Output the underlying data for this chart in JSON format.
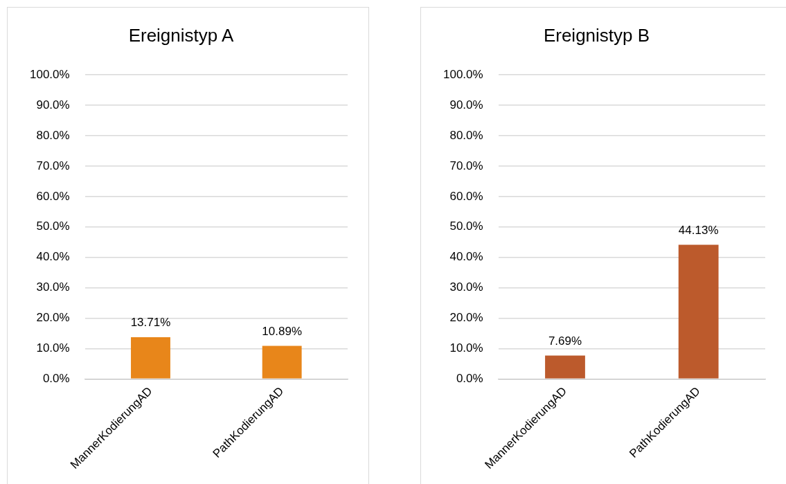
{
  "chart_data": [
    {
      "type": "bar",
      "title": "Ereignistyp A",
      "categories": [
        "MannerKodierungAD",
        "PathKodierungAD"
      ],
      "values": [
        13.71,
        10.89
      ],
      "color": "#e8861a",
      "value_labels": [
        "13.71%",
        "10.89%"
      ],
      "ylim": [
        0,
        100
      ],
      "yticks": [
        {
          "value": 0,
          "label": "0.0%"
        },
        {
          "value": 10,
          "label": "10.0%"
        },
        {
          "value": 20,
          "label": "20.0%"
        },
        {
          "value": 30,
          "label": "30.0%"
        },
        {
          "value": 40,
          "label": "40.0%"
        },
        {
          "value": 50,
          "label": "50.0%"
        },
        {
          "value": 60,
          "label": "60.0%"
        },
        {
          "value": 70,
          "label": "70.0%"
        },
        {
          "value": 80,
          "label": "80.0%"
        },
        {
          "value": 90,
          "label": "90.0%"
        },
        {
          "value": 100,
          "label": "100.0%"
        }
      ],
      "grid": "y",
      "legend": false
    },
    {
      "type": "bar",
      "title": "Ereignistyp B",
      "categories": [
        "MannerKodierungAD",
        "PathKodierungAD"
      ],
      "values": [
        7.69,
        44.13
      ],
      "color": "#bc5a2c",
      "value_labels": [
        "7.69%",
        "44.13%"
      ],
      "ylim": [
        0,
        100
      ],
      "yticks": [
        {
          "value": 0,
          "label": "0.0%"
        },
        {
          "value": 10,
          "label": "10.0%"
        },
        {
          "value": 20,
          "label": "20.0%"
        },
        {
          "value": 30,
          "label": "30.0%"
        },
        {
          "value": 40,
          "label": "40.0%"
        },
        {
          "value": 50,
          "label": "50.0%"
        },
        {
          "value": 60,
          "label": "60.0%"
        },
        {
          "value": 70,
          "label": "70.0%"
        },
        {
          "value": 80,
          "label": "80.0%"
        },
        {
          "value": 90,
          "label": "90.0%"
        },
        {
          "value": 100,
          "label": "100.0%"
        }
      ],
      "grid": "y",
      "legend": false
    }
  ]
}
